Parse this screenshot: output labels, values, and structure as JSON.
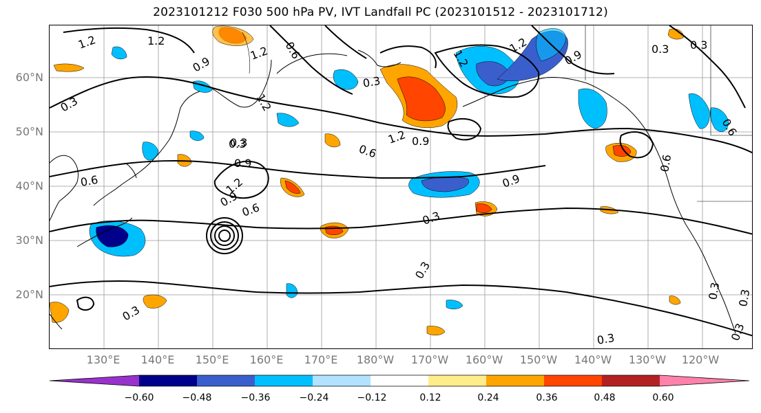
{
  "title": "2023101212 F030 500 hPa PV, IVT Landfall PC (2023101512 - 2023101712)",
  "map": {
    "lat_labels": [
      "60°N",
      "50°N",
      "40°N",
      "30°N",
      "20°N"
    ],
    "lon_labels": [
      "130°E",
      "140°E",
      "150°E",
      "160°E",
      "170°E",
      "180°W",
      "170°W",
      "160°W",
      "150°W",
      "140°W",
      "130°W",
      "120°W"
    ],
    "contour_labels": [
      "1.2",
      "1.2",
      "1.2",
      "0.9",
      "0.6",
      "0.3",
      "1.2",
      "0.9",
      "0.6",
      "1.2",
      "0.9",
      "0.3",
      "0.9",
      "0.3",
      "0.6",
      "1.2",
      "0.9",
      "0.3",
      "0.6",
      "0.3",
      "0.3",
      "0.3",
      "0.9",
      "0.3",
      "0.3",
      "0.3",
      "0.3",
      "0.3",
      "0.3",
      "0.6",
      "1.2",
      "1.2",
      "0.6"
    ]
  },
  "colorbar": {
    "ticks": [
      "−0.60",
      "−0.48",
      "−0.36",
      "−0.24",
      "−0.12",
      "0.12",
      "0.24",
      "0.36",
      "0.48",
      "0.60"
    ],
    "colors": [
      "#9932cc",
      "#00008b",
      "#3a5fcd",
      "#00bfff",
      "#b2e2ff",
      "#ffffff",
      "#ffec8b",
      "#ffa500",
      "#ff4500",
      "#b22222",
      "#ff82ab"
    ]
  }
}
